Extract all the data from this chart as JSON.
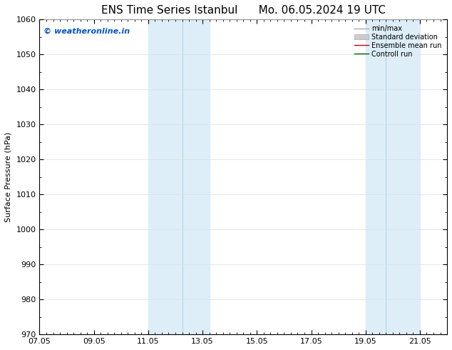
{
  "title_left": "ENS Time Series Istanbul",
  "title_right": "Mo. 06.05.2024 19 UTC",
  "ylabel": "Surface Pressure (hPa)",
  "ylim": [
    970,
    1060
  ],
  "yticks": [
    970,
    980,
    990,
    1000,
    1010,
    1020,
    1030,
    1040,
    1050,
    1060
  ],
  "xtick_labels": [
    "07.05",
    "09.05",
    "11.05",
    "13.05",
    "15.05",
    "17.05",
    "19.05",
    "21.05"
  ],
  "xtick_values": [
    0,
    2,
    4,
    6,
    8,
    10,
    12,
    14
  ],
  "xlim": [
    0,
    15
  ],
  "shaded_bands": [
    {
      "xstart": 4.0,
      "xend": 5.25,
      "color": "#ddeef8"
    },
    {
      "xstart": 5.25,
      "xend": 6.25,
      "color": "#ddeef8"
    },
    {
      "xstart": 12.0,
      "xend": 12.75,
      "color": "#ddeef8"
    },
    {
      "xstart": 12.75,
      "xend": 14.0,
      "color": "#ddeef8"
    }
  ],
  "shade_dividers": [
    5.25,
    12.75
  ],
  "watermark_text": "© weatheronline.in",
  "watermark_color": "#0055cc",
  "legend_labels": [
    "min/max",
    "Standard deviation",
    "Ensemble mean run",
    "Controll run"
  ],
  "legend_colors": [
    "#aaaaaa",
    "#cccccc",
    "#ff0000",
    "#007700"
  ],
  "background_color": "#ffffff",
  "plot_bg_color": "#ffffff",
  "grid_color": "#dddddd",
  "font_size": 8,
  "title_font_size": 11
}
